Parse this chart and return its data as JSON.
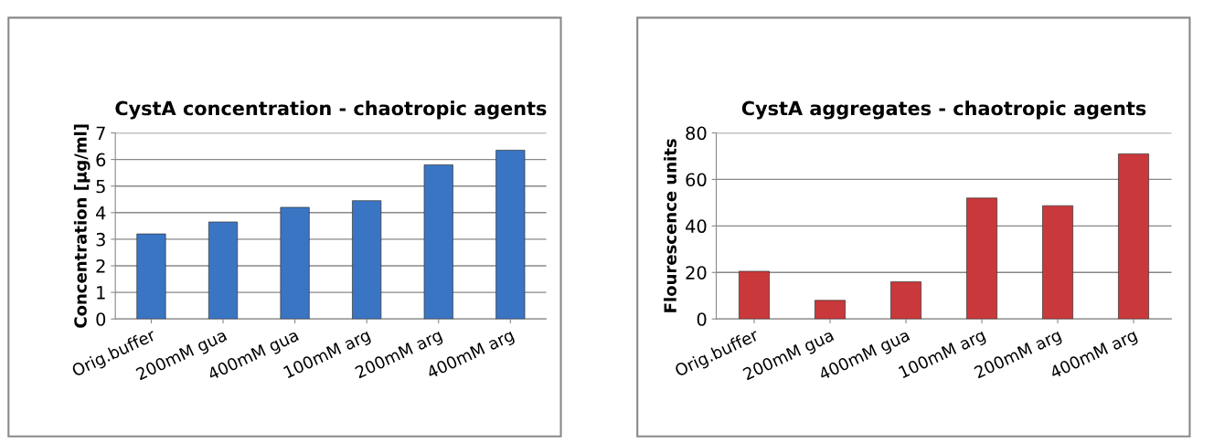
{
  "chart_data": [
    {
      "type": "bar",
      "title": "CystA concentration - chaotropic agents",
      "ylabel": "Concentration [µg/ml]",
      "categories": [
        "Orig.buffer",
        "200mM gua",
        "400mM gua",
        "100mM arg",
        "200mM arg",
        "400mM arg"
      ],
      "values": [
        3.2,
        3.65,
        4.2,
        4.45,
        5.8,
        6.35
      ],
      "color": "#3a75c4",
      "ylim": [
        0,
        7
      ],
      "yticks": [
        0,
        1,
        2,
        3,
        4,
        5,
        6,
        7
      ],
      "grid": "y"
    },
    {
      "type": "bar",
      "title": "CystA aggregates - chaotropic agents",
      "ylabel": "Flourescence units",
      "categories": [
        "Orig.buffer",
        "200mM gua",
        "400mM gua",
        "100mM arg",
        "200mM arg",
        "400mM arg"
      ],
      "values": [
        20.5,
        8,
        16,
        52,
        48.7,
        71
      ],
      "color": "#c9383a",
      "ylim": [
        0,
        80
      ],
      "yticks": [
        0,
        20,
        40,
        60,
        80
      ],
      "grid": "y"
    }
  ]
}
